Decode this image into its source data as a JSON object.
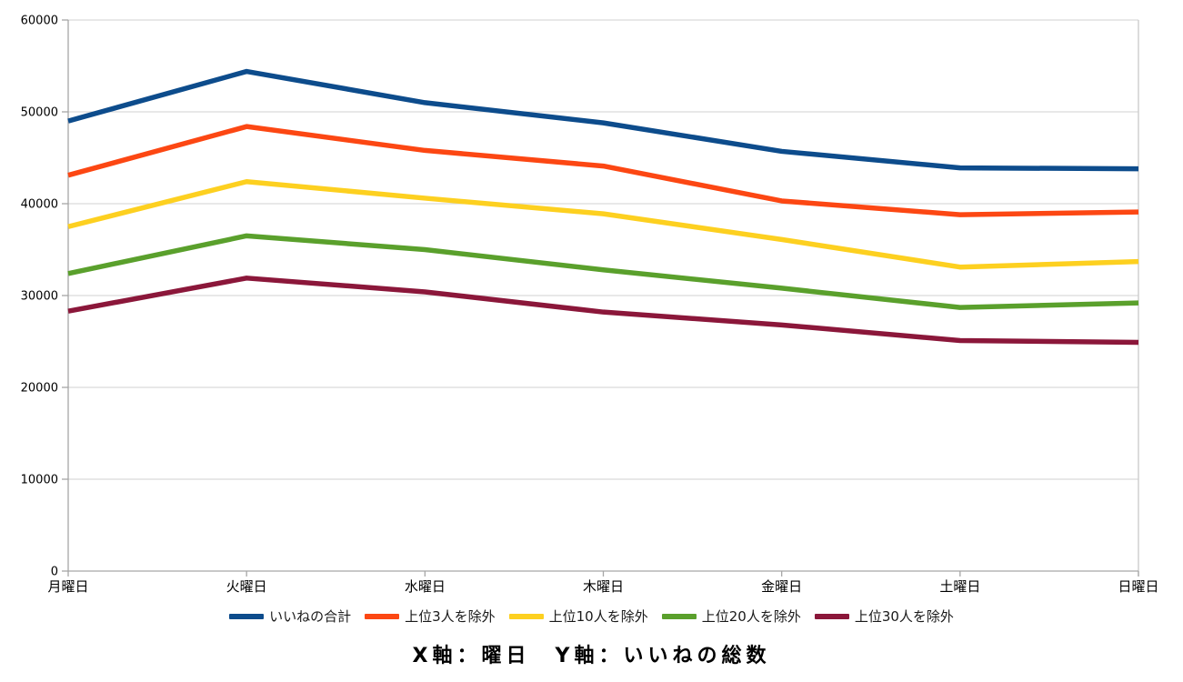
{
  "chart_data": {
    "type": "line",
    "title": "",
    "categories": [
      "月曜日",
      "火曜日",
      "水曜日",
      "木曜日",
      "金曜日",
      "土曜日",
      "日曜日"
    ],
    "series": [
      {
        "name": "いいねの合計",
        "color": "#0d4c8c",
        "values": [
          49000,
          54400,
          51000,
          48800,
          45700,
          43900,
          43800
        ]
      },
      {
        "name": "上位3人を除外",
        "color": "#fc4713",
        "values": [
          43100,
          48400,
          45800,
          44100,
          40300,
          38800,
          39100
        ]
      },
      {
        "name": "上位10人を除外",
        "color": "#fdd020",
        "values": [
          37500,
          42400,
          40600,
          38900,
          36100,
          33100,
          33700
        ]
      },
      {
        "name": "上位20人を除外",
        "color": "#5aa02c",
        "values": [
          32400,
          36500,
          35000,
          32800,
          30800,
          28700,
          29200
        ]
      },
      {
        "name": "上位30人を除外",
        "color": "#8b173a",
        "values": [
          28300,
          31900,
          30400,
          28200,
          26800,
          25100,
          24900
        ]
      }
    ],
    "xlabel": "曜日",
    "ylabel": "いいねの総数",
    "ylim": [
      0,
      60000
    ],
    "ytick_step": 10000,
    "ytick_labels": [
      "0",
      "10000",
      "20000",
      "30000",
      "40000",
      "50000",
      "60000"
    ],
    "grid": true,
    "legend_position": "bottom"
  },
  "caption": {
    "text": "X軸：曜日　Y軸：いいねの総数"
  },
  "colors": {
    "gridline": "#d9d9d9",
    "axis": "#a6a6a6",
    "plot_right_border": "#c9c9c9",
    "tick_label": "#000000",
    "legend_text": "#1a1a1a"
  }
}
